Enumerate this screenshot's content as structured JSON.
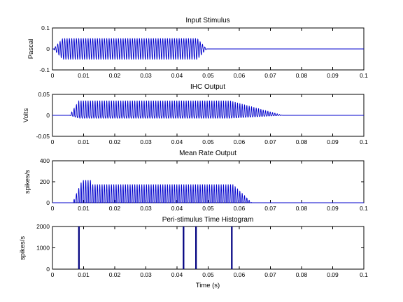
{
  "chart_data": [
    {
      "type": "line",
      "title": "Input Stimulus",
      "ylabel": "Pascal",
      "xlabel": "",
      "xlim": [
        0,
        0.1
      ],
      "ylim": [
        -0.1,
        0.1
      ],
      "xticks": [
        "0",
        "0.01",
        "0.02",
        "0.03",
        "0.04",
        "0.05",
        "0.06",
        "0.07",
        "0.08",
        "0.09",
        "0.1"
      ],
      "yticks": [
        "-0.1",
        "0",
        "0.1"
      ],
      "color": "#0000cc",
      "signal": {
        "kind": "tone_burst",
        "onset": 0.0003,
        "offset": 0.0495,
        "rise": 0.003,
        "amplitude": 0.05,
        "oscillation_period": 0.00075
      }
    },
    {
      "type": "line",
      "title": "IHC Output",
      "ylabel": "Volts",
      "xlabel": "",
      "xlim": [
        0,
        0.1
      ],
      "ylim": [
        -0.05,
        0.05
      ],
      "xticks": [
        "0",
        "0.01",
        "0.02",
        "0.03",
        "0.04",
        "0.05",
        "0.06",
        "0.07",
        "0.08",
        "0.09",
        "0.1"
      ],
      "yticks": [
        "-0.05",
        "0",
        "0.05"
      ],
      "color": "#0000cc",
      "signal": {
        "kind": "response",
        "onset": 0.0055,
        "offset": 0.057,
        "peak": 0.035,
        "trough": -0.007,
        "decay_end": 0.074,
        "oscillation_period": 0.00075
      }
    },
    {
      "type": "line",
      "title": "Mean Rate Output",
      "ylabel": "spikes/s",
      "xlabel": "",
      "xlim": [
        0,
        0.1
      ],
      "ylim": [
        0,
        400
      ],
      "xticks": [
        "0",
        "0.01",
        "0.02",
        "0.03",
        "0.04",
        "0.05",
        "0.06",
        "0.07",
        "0.08",
        "0.09",
        "0.1"
      ],
      "yticks": [
        "0",
        "200",
        "400"
      ],
      "color": "#0000cc",
      "signal": {
        "kind": "rate",
        "onset": 0.0065,
        "offset": 0.058,
        "peak": 215,
        "sustained": 175,
        "decay_end": 0.064,
        "oscillation_period": 0.00075
      }
    },
    {
      "type": "bar",
      "title": "Peri-stimulus Time Histogram",
      "ylabel": "spikes/s",
      "xlabel": "Time (s)",
      "xlim": [
        0,
        0.1
      ],
      "ylim": [
        0,
        2000
      ],
      "xticks": [
        "0",
        "0.01",
        "0.02",
        "0.03",
        "0.04",
        "0.05",
        "0.06",
        "0.07",
        "0.08",
        "0.09",
        "0.1"
      ],
      "yticks": [
        "0",
        "1000",
        "2000"
      ],
      "color": "#000080",
      "bars": [
        {
          "x": 0.0085,
          "value": 2000
        },
        {
          "x": 0.0421,
          "value": 2000
        },
        {
          "x": 0.0461,
          "value": 2000
        },
        {
          "x": 0.0576,
          "value": 2000
        }
      ],
      "bin_width": 0.0005
    }
  ]
}
